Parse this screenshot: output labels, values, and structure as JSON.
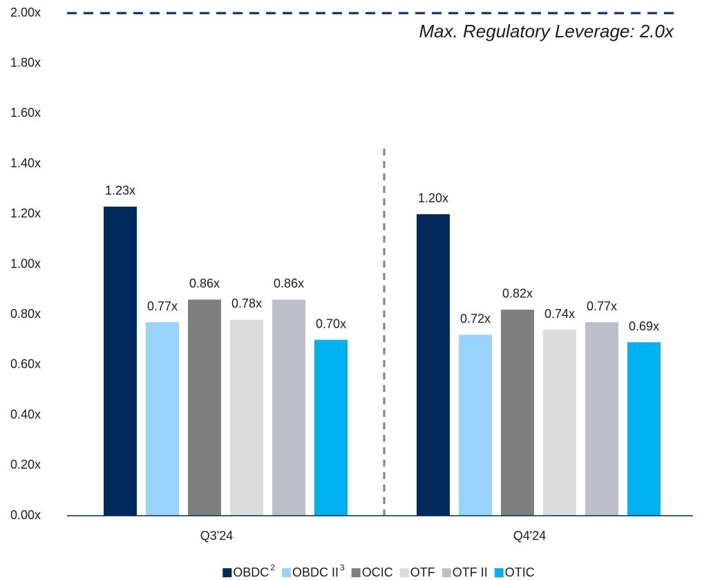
{
  "chart_data": {
    "type": "bar",
    "categories": [
      "Q3'24",
      "Q4'24"
    ],
    "series": [
      {
        "name": "OBDC",
        "footnote": "2",
        "color": "#002a5c",
        "values": [
          1.23,
          1.2
        ],
        "value_labels": [
          "1.23x",
          "1.20x"
        ]
      },
      {
        "name": "OBDC II",
        "footnote": "3",
        "color": "#99d3ff",
        "values": [
          0.77,
          0.72
        ],
        "value_labels": [
          "0.77x",
          "0.72x"
        ]
      },
      {
        "name": "OCIC",
        "color": "#7f7f7f",
        "values": [
          0.86,
          0.82
        ],
        "value_labels": [
          "0.86x",
          "0.82x"
        ]
      },
      {
        "name": "OTF",
        "color": "#dcdcdc",
        "values": [
          0.78,
          0.74
        ],
        "value_labels": [
          "0.78x",
          "0.74x"
        ]
      },
      {
        "name": "OTF II",
        "color": "#bcbec9",
        "values": [
          0.86,
          0.77
        ],
        "value_labels": [
          "0.86x",
          "0.77x"
        ]
      },
      {
        "name": "OTIC",
        "color": "#00b0f0",
        "values": [
          0.7,
          0.69
        ],
        "value_labels": [
          "0.70x",
          "0.69x"
        ]
      }
    ],
    "ylim": [
      0,
      2.0
    ],
    "yticks": [
      {
        "value": 0,
        "label": "0.00x"
      },
      {
        "value": 0.2,
        "label": "0.20x"
      },
      {
        "value": 0.4,
        "label": "0.40x"
      },
      {
        "value": 0.6,
        "label": "0.60x"
      },
      {
        "value": 0.8,
        "label": "0.80x"
      },
      {
        "value": 1.0,
        "label": "1.00x"
      },
      {
        "value": 1.2,
        "label": "1.20x"
      },
      {
        "value": 1.4,
        "label": "1.40x"
      },
      {
        "value": 1.6,
        "label": "1.60x"
      },
      {
        "value": 1.8,
        "label": "1.80x"
      },
      {
        "value": 2.0,
        "label": "2.00x"
      }
    ],
    "reference_line": {
      "value": 2.0,
      "label": "Max. Regulatory Leverage: 2.0x"
    },
    "legend": "bottom"
  }
}
